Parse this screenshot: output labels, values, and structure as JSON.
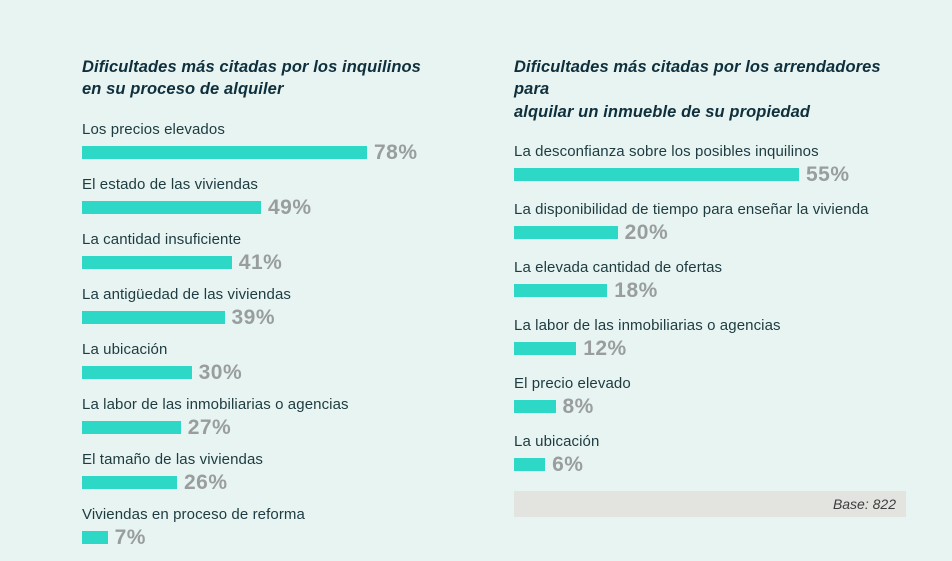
{
  "colors": {
    "background": "#e7f4f1",
    "bar": "#2dd8c6",
    "percent_text": "#9a9d9e",
    "label_text": "#1d3b40",
    "title_text": "#0f2f3c",
    "base_row_bg": "#e3e4e0",
    "base_row_text": "#3d3d3d"
  },
  "charts": {
    "left": {
      "title": "Dificultades más citadas por los inquilinos en su proceso de alquiler",
      "title_lines": [
        "Dificultades más citadas por los inquilinos",
        "en su proceso de alquiler"
      ],
      "rows": [
        {
          "label": "Los precios elevados",
          "value": 78,
          "display": "78%"
        },
        {
          "label": "El estado de las viviendas",
          "value": 49,
          "display": "49%"
        },
        {
          "label": "La cantidad insuficiente",
          "value": 41,
          "display": "41%"
        },
        {
          "label": "La antigüedad de las viviendas",
          "value": 39,
          "display": "39%"
        },
        {
          "label": "La ubicación",
          "value": 30,
          "display": "30%"
        },
        {
          "label": "La labor de las inmobiliarias o agencias",
          "value": 27,
          "display": "27%"
        },
        {
          "label": "El tamaño de las viviendas",
          "value": 26,
          "display": "26%"
        },
        {
          "label": "Viviendas en proceso de reforma",
          "value": 7,
          "display": "7%"
        }
      ]
    },
    "right": {
      "title": "Dificultades más citadas por los arrendadores para alquilar un inmueble de su propiedad",
      "title_lines": [
        "Dificultades más citadas por los arrendadores para",
        "alquilar un inmueble de su propiedad"
      ],
      "rows": [
        {
          "label": "La desconfianza sobre los posibles inquilinos",
          "value": 55,
          "display": "55%"
        },
        {
          "label": "La disponibilidad de tiempo para enseñar la vivienda",
          "value": 20,
          "display": "20%"
        },
        {
          "label": "La elevada cantidad de ofertas",
          "value": 18,
          "display": "18%"
        },
        {
          "label": "La labor de las inmobiliarias o agencias",
          "value": 12,
          "display": "12%"
        },
        {
          "label": "El precio elevado",
          "value": 8,
          "display": "8%"
        },
        {
          "label": "La ubicación",
          "value": 6,
          "display": "6%"
        }
      ],
      "base_note": "Base: 822"
    }
  },
  "chart_data": [
    {
      "type": "bar",
      "orientation": "horizontal",
      "title": "Dificultades más citadas por los inquilinos en su proceso de alquiler",
      "categories": [
        "Los precios elevados",
        "El estado de las viviendas",
        "La cantidad insuficiente",
        "La antigüedad de las viviendas",
        "La ubicación",
        "La labor de las inmobiliarias o agencias",
        "El tamaño de las viviendas",
        "Viviendas en proceso de reforma"
      ],
      "values": [
        78,
        49,
        41,
        39,
        30,
        27,
        26,
        7
      ],
      "unit": "%",
      "xlim": [
        0,
        78
      ],
      "grid": false,
      "legend": false
    },
    {
      "type": "bar",
      "orientation": "horizontal",
      "title": "Dificultades más citadas por los arrendadores para alquilar un inmueble de su propiedad",
      "categories": [
        "La desconfianza sobre los posibles inquilinos",
        "La disponibilidad de tiempo para enseñar la vivienda",
        "La elevada cantidad de ofertas",
        "La labor de las inmobiliarias o agencias",
        "El precio elevado",
        "La ubicación"
      ],
      "values": [
        55,
        20,
        18,
        12,
        8,
        6
      ],
      "unit": "%",
      "xlim": [
        0,
        55
      ],
      "grid": false,
      "legend": false,
      "annotation": "Base: 822"
    }
  ]
}
